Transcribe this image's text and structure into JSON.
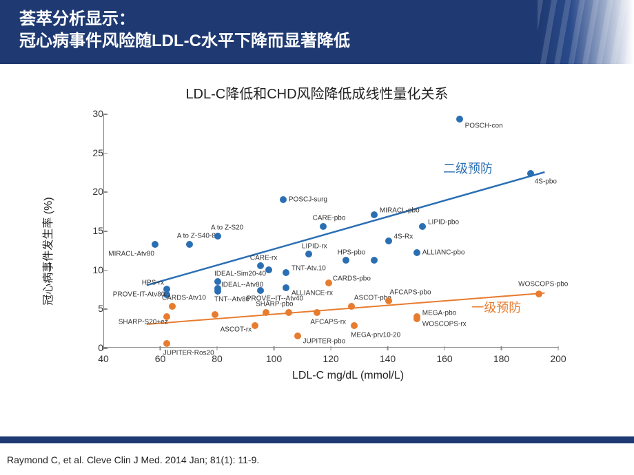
{
  "header": {
    "title_line1": "荟萃分析显示：",
    "title_line2": "冠心病事件风险随LDL-C水平下降而显著降低"
  },
  "citation": "Raymond C, et al. Cleve Clin J Med. 2014 Jan; 81(1): 11-9.",
  "chart": {
    "type": "scatter",
    "title": "LDL-C降低和CHD风险降低成线性量化关系",
    "xlabel": "LDL-C mg/dL (mmol/L)",
    "ylabel": "冠心病事件发生率 (%)",
    "xlim": [
      40,
      200
    ],
    "ylim": [
      0,
      30
    ],
    "xtick_step": 20,
    "ytick_step": 5,
    "axis_color": "#888888",
    "background_color": "#ffffff",
    "text_color": "#333333",
    "tick_fontsize": 14,
    "label_fontsize": 16,
    "title_fontsize": 20,
    "point_label_fontsize": 10,
    "marker_radius": 5,
    "series": {
      "secondary": {
        "label": "二级预防",
        "label_pos": [
          168,
          23
        ],
        "color": "#2b6fb3",
        "trend": {
          "x1": 55,
          "y1": 8,
          "x2": 195,
          "y2": 22.5,
          "width": 2.5
        },
        "points": [
          {
            "x": 58,
            "y": 13.2,
            "label": "MIRACL-Atv80",
            "dx": -68,
            "dy": 14
          },
          {
            "x": 62,
            "y": 6.8,
            "label": "PROVE-IT-Atv80",
            "dx": -78,
            "dy": 0
          },
          {
            "x": 62,
            "y": 7.5,
            "label": "HPS-rx",
            "dx": -36,
            "dy": -9
          },
          {
            "x": 70,
            "y": 13.2,
            "label": "A to Z-S40-80",
            "dx": -18,
            "dy": -12
          },
          {
            "x": 80,
            "y": 14.3,
            "label": "A to Z-S20",
            "dx": -10,
            "dy": -12
          },
          {
            "x": 80,
            "y": 8.5,
            "label": "IDEAL-Sim20-40",
            "dx": -5,
            "dy": -11
          },
          {
            "x": 80,
            "y": 7.6,
            "label": "IDEAL--Atv80",
            "dx": 5,
            "dy": -5
          },
          {
            "x": 80,
            "y": 7.2,
            "label": "TNT--Atv80",
            "dx": -5,
            "dy": 12
          },
          {
            "x": 95,
            "y": 10.5,
            "label": "CARE-rx",
            "dx": -15,
            "dy": -11
          },
          {
            "x": 95,
            "y": 7.3,
            "label": "PROVE--IT--Atv40",
            "dx": -20,
            "dy": 12
          },
          {
            "x": 98,
            "y": 10.0,
            "label": "",
            "dx": 0,
            "dy": 0
          },
          {
            "x": 103,
            "y": 19.0,
            "label": "POSCJ-surg",
            "dx": 8,
            "dy": 0
          },
          {
            "x": 104,
            "y": 9.6,
            "label": "TNT-Atv.10",
            "dx": 8,
            "dy": -6
          },
          {
            "x": 104,
            "y": 7.7,
            "label": "ALLIANCE-rx",
            "dx": 8,
            "dy": 8
          },
          {
            "x": 112,
            "y": 12.0,
            "label": "LIPID-rx",
            "dx": -10,
            "dy": -11
          },
          {
            "x": 117,
            "y": 15.5,
            "label": "CARE-pbo",
            "dx": -15,
            "dy": -12
          },
          {
            "x": 125,
            "y": 11.2,
            "label": "HPS-pbo",
            "dx": -12,
            "dy": -11
          },
          {
            "x": 135,
            "y": 17.0,
            "label": "MIRACL-pbo",
            "dx": 8,
            "dy": -6
          },
          {
            "x": 135,
            "y": 11.2,
            "label": "",
            "dx": 0,
            "dy": 0
          },
          {
            "x": 140,
            "y": 13.7,
            "label": "4S-Rx",
            "dx": 8,
            "dy": -6
          },
          {
            "x": 150,
            "y": 12.2,
            "label": "ALLIANC-pbo",
            "dx": 8,
            "dy": 0
          },
          {
            "x": 152,
            "y": 15.5,
            "label": "LIPID-pbo",
            "dx": 8,
            "dy": -6
          },
          {
            "x": 165,
            "y": 29.3,
            "label": "POSCH-con",
            "dx": 8,
            "dy": 10
          },
          {
            "x": 190,
            "y": 22.3,
            "label": "4S-pbo",
            "dx": 6,
            "dy": 12
          }
        ]
      },
      "primary": {
        "label": "一级预防",
        "label_pos": [
          178,
          5.2
        ],
        "color": "#e77c2f",
        "trend": {
          "x1": 55,
          "y1": 3.0,
          "x2": 195,
          "y2": 7.0,
          "width": 2.0
        },
        "points": [
          {
            "x": 62,
            "y": 0.5,
            "label": "JUPITER-Ros20",
            "dx": -5,
            "dy": 14
          },
          {
            "x": 62,
            "y": 4.0,
            "label": "SHARP-S20+ez",
            "dx": -70,
            "dy": 8
          },
          {
            "x": 64,
            "y": 5.3,
            "label": "CARDS-Atv10",
            "dx": -15,
            "dy": -12
          },
          {
            "x": 79,
            "y": 4.2,
            "label": "",
            "dx": 0,
            "dy": 0
          },
          {
            "x": 93,
            "y": 2.8,
            "label": "ASCOT-rx",
            "dx": -50,
            "dy": 6
          },
          {
            "x": 97,
            "y": 4.5,
            "label": "SHARP-pbo",
            "dx": -15,
            "dy": -12
          },
          {
            "x": 105,
            "y": 4.5,
            "label": "",
            "dx": 0,
            "dy": 0
          },
          {
            "x": 108,
            "y": 1.5,
            "label": "JUPITER-pbo",
            "dx": 8,
            "dy": 8
          },
          {
            "x": 115,
            "y": 4.5,
            "label": "AFCAPS-rx",
            "dx": -10,
            "dy": 14
          },
          {
            "x": 119,
            "y": 8.3,
            "label": "CARDS-pbo",
            "dx": 6,
            "dy": -6
          },
          {
            "x": 127,
            "y": 5.3,
            "label": "ASCOT-pbo",
            "dx": 4,
            "dy": -12
          },
          {
            "x": 128,
            "y": 2.8,
            "label": "MEGA-prv10-20",
            "dx": -5,
            "dy": 14
          },
          {
            "x": 140,
            "y": 6.0,
            "label": "AFCAPS-pbo",
            "dx": 2,
            "dy": -12
          },
          {
            "x": 150,
            "y": 4.0,
            "label": "MEGA-pbo",
            "dx": 8,
            "dy": -5
          },
          {
            "x": 150,
            "y": 3.7,
            "label": "WOSCOPS-rx",
            "dx": 8,
            "dy": 8
          },
          {
            "x": 193,
            "y": 6.9,
            "label": "WOSCOPS-pbo",
            "dx": -30,
            "dy": -14
          }
        ]
      }
    }
  }
}
